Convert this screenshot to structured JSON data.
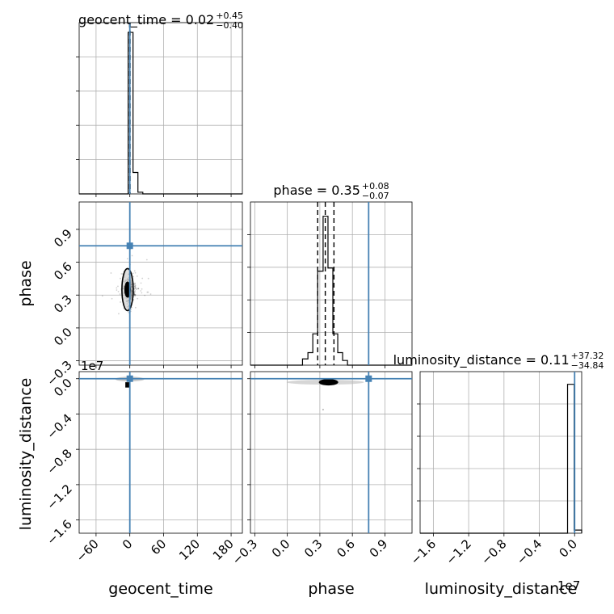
{
  "colors": {
    "truth": "#4682b4",
    "line": "#000000",
    "grid": "#b0b0b0",
    "background": "#ffffff"
  },
  "chart_data": {
    "type": "corner",
    "parameters": [
      "geocent_time",
      "phase",
      "luminosity_distance"
    ],
    "truths": {
      "geocent_time": 0.0,
      "phase": 0.75,
      "luminosity_distance": 0.0
    },
    "titles": [
      {
        "name": "geocent_time",
        "text": "geocent_time = 0.02",
        "plus": "+0.45",
        "minus": "−0.40"
      },
      {
        "name": "phase",
        "text": "phase = 0.35",
        "plus": "+0.08",
        "minus": "−0.07"
      },
      {
        "name": "luminosity_distance",
        "text": "luminosity_distance = 0.11",
        "plus": "+37.32",
        "minus": "−34.84"
      }
    ],
    "offset_text": "1e7",
    "axes": {
      "geocent_time": {
        "range": [
          -90,
          200
        ],
        "ticks": [
          -60,
          0,
          60,
          120,
          180
        ],
        "tick_labels": [
          "−60",
          "0",
          "60",
          "120",
          "180"
        ],
        "label": "geocent_time"
      },
      "phase": {
        "range": [
          -0.34,
          1.15
        ],
        "ticks": [
          -0.3,
          0.0,
          0.3,
          0.6,
          0.9
        ],
        "tick_labels": [
          "−0.3",
          "0.0",
          "0.3",
          "0.6",
          "0.9"
        ],
        "label": "phase"
      },
      "luminosity_distance": {
        "range": [
          -1.75,
          0.08
        ],
        "ticks": [
          -1.6,
          -1.2,
          -0.8,
          -0.4,
          0.0
        ],
        "tick_labels": [
          "−1.6",
          "−1.2",
          "−0.8",
          "−0.4",
          "0.0"
        ],
        "label": "luminosity_distance"
      }
    },
    "histograms": {
      "geocent_time": {
        "edges": [
          -90,
          -81.3,
          -72.6,
          -63.9,
          -55.2,
          -46.5,
          -37.8,
          -29.1,
          -20.4,
          -11.7,
          -3.0,
          5.7,
          14.4,
          23.1,
          31.8,
          40.5,
          49.2,
          57.9,
          66.6,
          75.3,
          84.0,
          200
        ],
        "counts": [
          0,
          0,
          0,
          0,
          0,
          0,
          0,
          0,
          0,
          0,
          0.98,
          0.13,
          0.01,
          0,
          0,
          0,
          0,
          0,
          0,
          0,
          0
        ],
        "quantiles": [
          -0.38,
          0.02,
          0.47
        ]
      },
      "phase": {
        "edges": [
          -0.34,
          0.14,
          0.19,
          0.235,
          0.28,
          0.33,
          0.375,
          0.42,
          0.465,
          0.51,
          0.555,
          1.15
        ],
        "counts": [
          0,
          0.04,
          0.08,
          0.2,
          0.6,
          0.95,
          0.62,
          0.2,
          0.08,
          0.03,
          0
        ],
        "quantiles": [
          0.28,
          0.35,
          0.43
        ]
      },
      "luminosity_distance": {
        "edges": [
          -1.75,
          -0.08,
          -0.005,
          0.08
        ],
        "counts": [
          0,
          0.96,
          0.02
        ],
        "quantiles": [
          -3.5e-06,
          1.1e-08,
          3.7e-06
        ]
      }
    },
    "ylabels": [
      "phase",
      "luminosity_distance"
    ]
  }
}
